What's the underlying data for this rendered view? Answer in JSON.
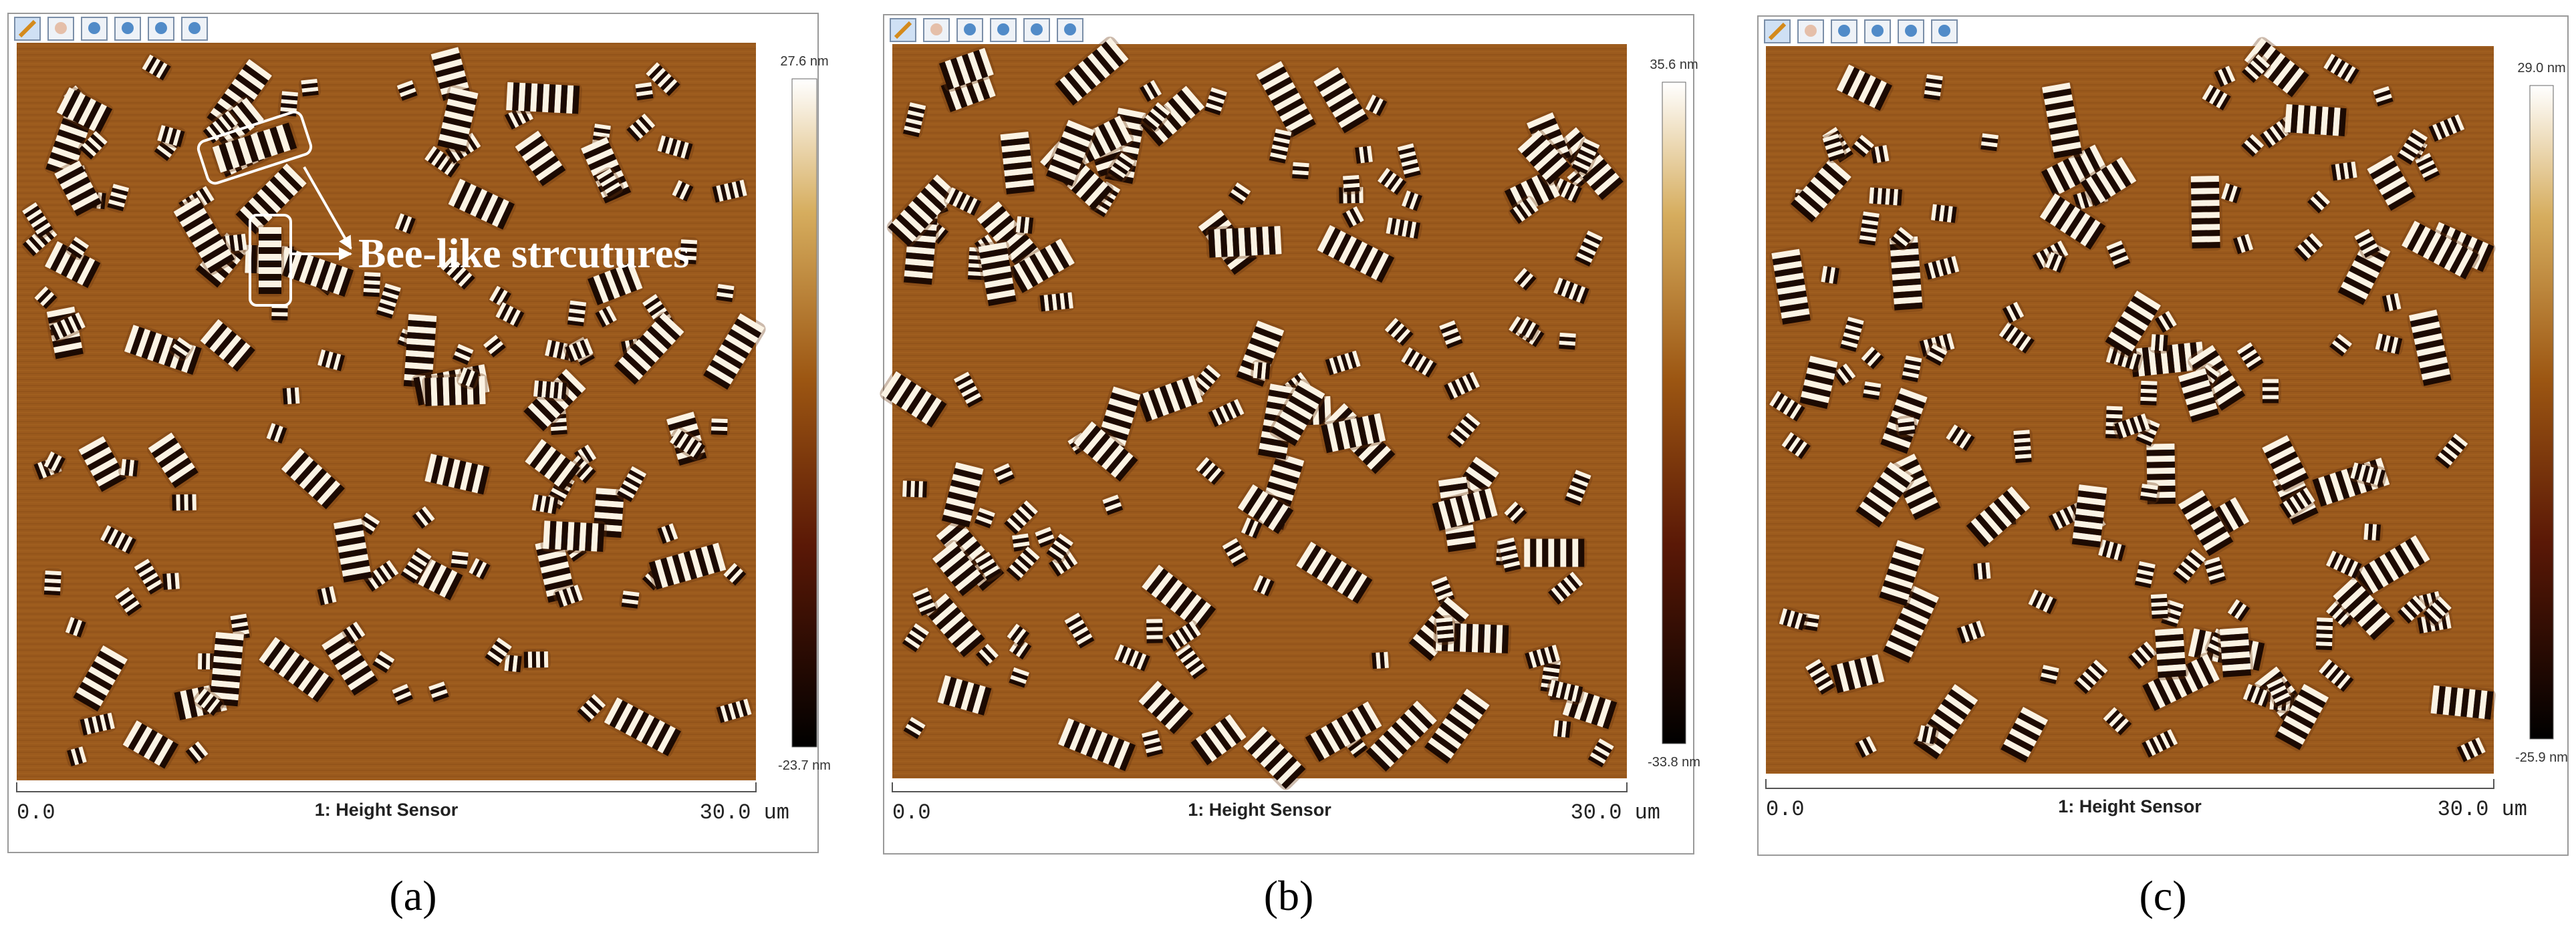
{
  "panels": [
    {
      "scale_max": "27.6 nm",
      "scale_min": "-23.7 nm",
      "x_start": "0.0",
      "channel": "1: Height Sensor",
      "x_end": "30.0 um",
      "caption": "(a)",
      "annotation": "Bee-like strcutures"
    },
    {
      "scale_max": "35.6 nm",
      "scale_min": "-33.8 nm",
      "x_start": "0.0",
      "channel": "1: Height Sensor",
      "x_end": "30.0 um",
      "caption": "(b)"
    },
    {
      "scale_max": "29.0 nm",
      "scale_min": "-25.9 nm",
      "x_start": "0.0",
      "channel": "1: Height Sensor",
      "x_end": "30.0 um",
      "caption": "(c)"
    }
  ]
}
